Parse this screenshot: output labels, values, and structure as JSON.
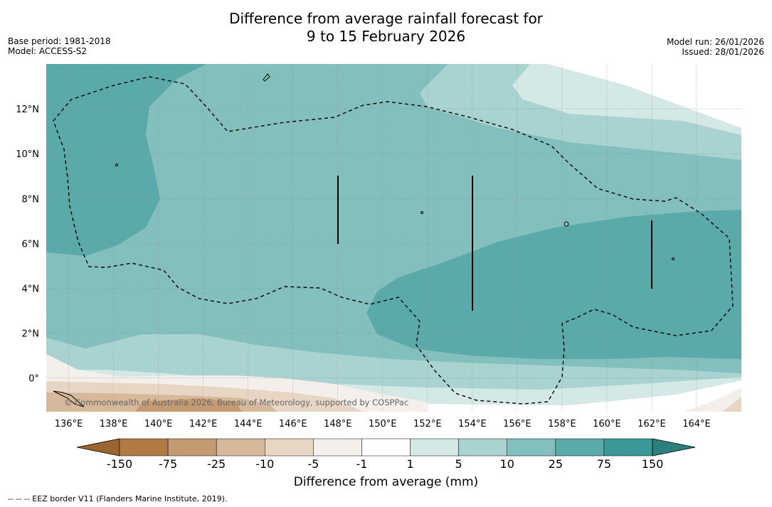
{
  "header": {
    "title_line1": "Difference from average rainfall forecast for",
    "title_line2": "9 to 15 February 2026",
    "base_period": "Base period: 1981-2018",
    "model": "Model: ACCESS-S2",
    "model_run": "Model run: 26/01/2026",
    "issued": "Issued: 28/01/2026"
  },
  "map": {
    "lon_labels": [
      "136°E",
      "138°E",
      "140°E",
      "142°E",
      "144°E",
      "146°E",
      "148°E",
      "150°E",
      "152°E",
      "154°E",
      "156°E",
      "158°E",
      "160°E",
      "162°E",
      "164°E"
    ],
    "lat_labels": [
      "12°N",
      "10°N",
      "8°N",
      "6°N",
      "4°N",
      "2°N",
      "0°"
    ],
    "lon_range": [
      135,
      166
    ],
    "lat_range": [
      -1.5,
      14
    ],
    "copyright": "© Commonwealth of Australia 2026, Bureau of Meteorology, supported by COSPPac",
    "eez_legend": "--  --  -- EEZ border V11 (Flanders Marine Institute, 2019)."
  },
  "colorbar": {
    "title": "Difference from average (mm)",
    "tick_labels": [
      "-150",
      "-75",
      "-25",
      "-10",
      "-5",
      "-1",
      "1",
      "5",
      "10",
      "25",
      "75",
      "150"
    ],
    "colors": [
      "#9a6530",
      "#b07a44",
      "#c49a72",
      "#d6b89a",
      "#e8d6c4",
      "#f4efea",
      "#ffffff",
      "#d4e8e6",
      "#a9d3d0",
      "#83c0bd",
      "#5aaaaa",
      "#3a9996",
      "#2b7f7c"
    ]
  }
}
